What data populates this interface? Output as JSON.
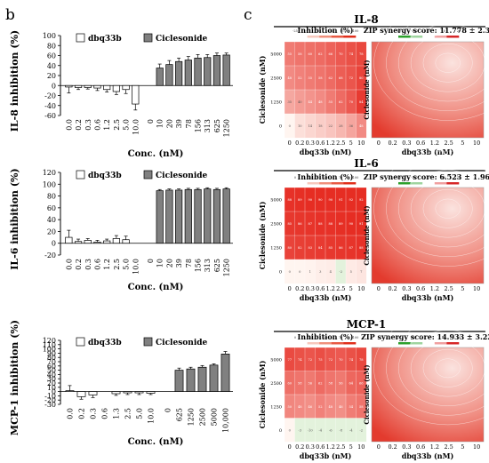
{
  "panel_labels": {
    "left": "b",
    "right": "c"
  },
  "chart_data": [
    {
      "type": "bar",
      "id": "il8",
      "ylabel": "IL-8 inhibition (%)",
      "xlabel": "Conc. (nM)",
      "ylim": [
        -60,
        100
      ],
      "yticks": [
        -60,
        -40,
        -20,
        0,
        20,
        40,
        60,
        80,
        100
      ],
      "series": [
        {
          "name": "dbq33b",
          "color": "#ffffff",
          "categories": [
            "0.0",
            "0.2",
            "0.3",
            "0.6",
            "1.2",
            "2.5",
            "5.0",
            "10.0"
          ],
          "values": [
            -3,
            -4,
            -4,
            -5,
            -8,
            -12,
            -8,
            -37
          ],
          "errors": [
            12,
            4,
            3,
            5,
            5,
            6,
            8,
            12
          ]
        },
        {
          "name": "Ciclesonide",
          "color": "#808080",
          "categories": [
            "0",
            "10",
            "20",
            "39",
            "78",
            "156",
            "313",
            "625",
            "1250"
          ],
          "values": [
            0,
            35,
            42,
            48,
            51,
            55,
            56,
            60,
            61
          ],
          "errors": [
            0,
            8,
            8,
            7,
            7,
            7,
            6,
            5,
            4
          ]
        }
      ]
    },
    {
      "type": "bar",
      "id": "il6",
      "ylabel": "IL-6 inhibition (%)",
      "xlabel": "Conc. (nM)",
      "ylim": [
        -20,
        120
      ],
      "yticks": [
        -20,
        0,
        20,
        40,
        60,
        80,
        100,
        120
      ],
      "series": [
        {
          "name": "dbq33b",
          "color": "#ffffff",
          "categories": [
            "0.0",
            "0.2",
            "0.3",
            "0.6",
            "1.2",
            "2.5",
            "5.0",
            "10.0"
          ],
          "values": [
            10,
            3,
            5,
            2,
            4,
            8,
            6,
            0
          ],
          "errors": [
            12,
            4,
            3,
            3,
            3,
            5,
            6,
            0
          ]
        },
        {
          "name": "Ciclesonide",
          "color": "#808080",
          "categories": [
            "0",
            "10",
            "20",
            "39",
            "78",
            "156",
            "313",
            "625",
            "1250"
          ],
          "values": [
            0,
            89,
            90,
            90,
            91,
            91,
            92,
            91,
            92
          ],
          "errors": [
            0,
            2,
            2,
            2,
            2,
            2,
            2,
            2,
            2
          ]
        }
      ]
    },
    {
      "type": "bar",
      "id": "mcp1",
      "ylabel": "MCP-1 inhibition (%)",
      "xlabel": "Conc. (nM)",
      "ylim": [
        -30,
        120
      ],
      "yticks": [
        -30,
        -20,
        -10,
        0,
        10,
        20,
        30,
        40,
        50,
        60,
        70,
        80,
        90,
        100,
        110,
        120
      ],
      "series": [
        {
          "name": "dbq33b",
          "color": "#ffffff",
          "categories": [
            "0.0",
            "0.2",
            "0.3",
            "0.6",
            "1.3",
            "2.5",
            "5.0",
            "10.0"
          ],
          "values": [
            2,
            -12,
            -8,
            0,
            -5,
            -3,
            -3,
            -4
          ],
          "errors": [
            12,
            6,
            6,
            5,
            4,
            4,
            4,
            3
          ]
        },
        {
          "name": "Ciclesonide",
          "color": "#808080",
          "categories": [
            "0",
            "625",
            "1250",
            "2500",
            "5000",
            "10,000"
          ],
          "values": [
            0,
            50,
            53,
            57,
            62,
            88
          ],
          "errors": [
            0,
            5,
            4,
            4,
            3,
            6
          ]
        }
      ]
    },
    {
      "type": "heatmap",
      "id": "il8-heat",
      "title": "IL-8",
      "legend_title": "Inhibition (%)",
      "legend_ticks": [
        "-25",
        "0",
        "25",
        "50",
        "75",
        "100"
      ],
      "zip_label": "ZIP synergy score: 11.778 ± 2.3",
      "zip_ticks": [
        "-20",
        "-10",
        "0",
        "10",
        "20"
      ],
      "xlabel": "dbq33b (nM)",
      "ylabel": "Ciclesonide (nM)",
      "x": [
        "0",
        "0.2",
        "0.3",
        "0.6",
        "1.2",
        "2.5",
        "5",
        "10"
      ],
      "y": [
        "5000",
        "2500",
        "1250",
        "0"
      ],
      "values": [
        [
          55,
          58,
          60,
          62,
          66,
          70,
          74,
          78
        ],
        [
          48,
          52,
          55,
          58,
          62,
          68,
          72,
          80
        ],
        [
          35,
          40,
          44,
          48,
          55,
          62,
          70,
          84
        ],
        [
          0,
          10,
          14,
          18,
          22,
          28,
          36,
          48
        ]
      ]
    },
    {
      "type": "heatmap",
      "id": "il6-heat",
      "title": "IL-6",
      "legend_title": "Inhibition (%)",
      "legend_ticks": [
        "0",
        "25",
        "50",
        "75",
        "100"
      ],
      "zip_label": "ZIP synergy score: 6.523 ± 1.96",
      "zip_ticks": [
        "-20",
        "-10",
        "0",
        "10",
        "20"
      ],
      "xlabel": "dbq33b (nM)",
      "ylabel": "Ciclesonide (nM)",
      "x": [
        "0",
        "0.2",
        "0.3",
        "0.6",
        "1.2",
        "2.5",
        "5",
        "10"
      ],
      "y": [
        "5000",
        "2500",
        "1250",
        "0"
      ],
      "values": [
        [
          88,
          89,
          90,
          90,
          90,
          91,
          92,
          92
        ],
        [
          85,
          86,
          87,
          88,
          88,
          89,
          90,
          91
        ],
        [
          80,
          82,
          83,
          84,
          85,
          86,
          87,
          88
        ],
        [
          0,
          0,
          1,
          3,
          4,
          -2,
          5,
          7
        ]
      ]
    },
    {
      "type": "heatmap",
      "id": "mcp1-heat",
      "title": "MCP-1",
      "legend_title": "Inhibition (%)",
      "legend_ticks": [
        "0",
        "25",
        "50",
        "75",
        "100"
      ],
      "zip_label": "ZIP synergy score: 14.933 ± 3.22",
      "zip_ticks": [
        "-20",
        "-10",
        "0",
        "10",
        "20"
      ],
      "xlabel": "dbq33b (nM)",
      "ylabel": "Ciclesonide (nM)",
      "x": [
        "0",
        "0.2",
        "0.3",
        "0.6",
        "1.2",
        "2.5",
        "5",
        "10"
      ],
      "y": [
        "5000",
        "2500",
        "1250",
        "0"
      ],
      "values": [
        [
          77,
          74,
          72,
          75,
          72,
          70,
          74,
          78
        ],
        [
          60,
          58,
          56,
          62,
          58,
          56,
          64,
          66
        ],
        [
          50,
          48,
          46,
          52,
          48,
          46,
          54,
          58
        ],
        [
          0,
          -3,
          -10,
          -4,
          -6,
          -8,
          -4,
          -2
        ]
      ]
    }
  ]
}
